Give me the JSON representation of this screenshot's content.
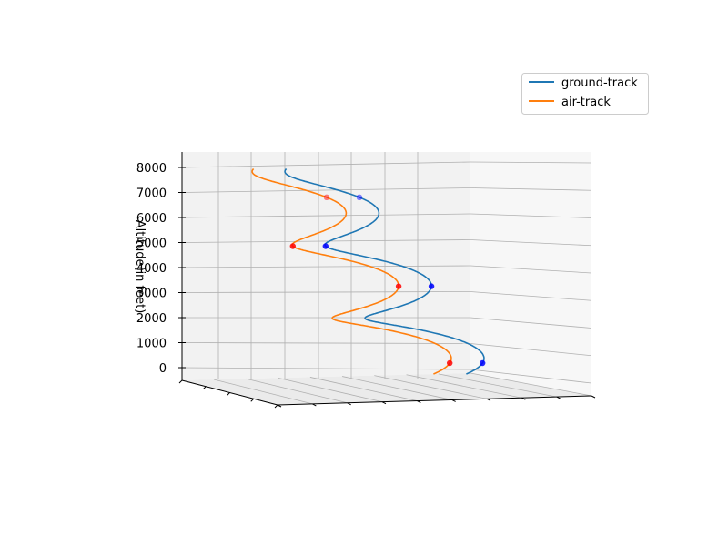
{
  "chart_data": {
    "type": "line",
    "projection": "3d",
    "title": "",
    "xlabel": "",
    "ylabel": "",
    "zlabel": "Altitude(in feet)",
    "zlim": [
      -300,
      8300
    ],
    "z_ticks": [
      "0",
      "1000",
      "2000",
      "3000",
      "4000",
      "5000",
      "6000",
      "7000",
      "8000"
    ],
    "grid": true,
    "legend_position": "top-right",
    "colors": {
      "ground-track": "#1f77b4",
      "air-track": "#ff7f0e",
      "ground-markers": "#0000ff",
      "air-markers": "#ff0000"
    },
    "series": [
      {
        "name": "ground-track",
        "amplitude": 1.0,
        "shift": 1.0,
        "z": [
          0,
          8000
        ],
        "marker_z": [
          300,
          3300,
          4850,
          6700
        ]
      },
      {
        "name": "air-track",
        "amplitude": 1.0,
        "shift": 0.0,
        "z": [
          0,
          8000
        ],
        "marker_z": [
          300,
          3300,
          4850,
          6700
        ]
      }
    ]
  }
}
